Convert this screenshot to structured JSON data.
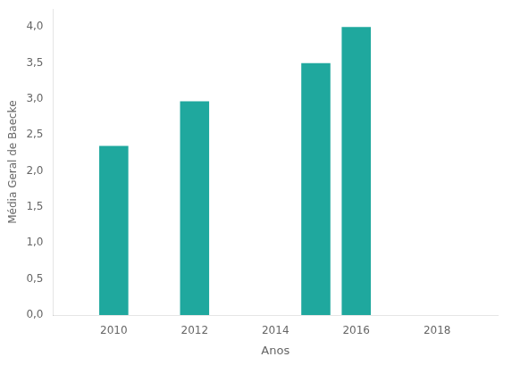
{
  "chart_data": {
    "type": "bar",
    "x": [
      2010,
      2012,
      2015,
      2016
    ],
    "values": [
      2.35,
      2.97,
      3.5,
      4.0
    ],
    "color": "#1fa89e",
    "xlim": [
      2008.5,
      2019.5
    ],
    "xticks": [
      2010,
      2012,
      2014,
      2016,
      2018
    ],
    "ylim": [
      0.0,
      4.25
    ],
    "yticks": [
      {
        "value": 0.0,
        "label": "0,0"
      },
      {
        "value": 0.5,
        "label": "0,5"
      },
      {
        "value": 1.0,
        "label": "1,0"
      },
      {
        "value": 1.5,
        "label": "1,5"
      },
      {
        "value": 2.0,
        "label": "2,0"
      },
      {
        "value": 2.5,
        "label": "2,5"
      },
      {
        "value": 3.0,
        "label": "3,0"
      },
      {
        "value": 3.5,
        "label": "3,5"
      },
      {
        "value": 4.0,
        "label": "4,0"
      }
    ],
    "xlabel": "Anos",
    "ylabel": "Média Geral de Baecke",
    "grid": false
  }
}
